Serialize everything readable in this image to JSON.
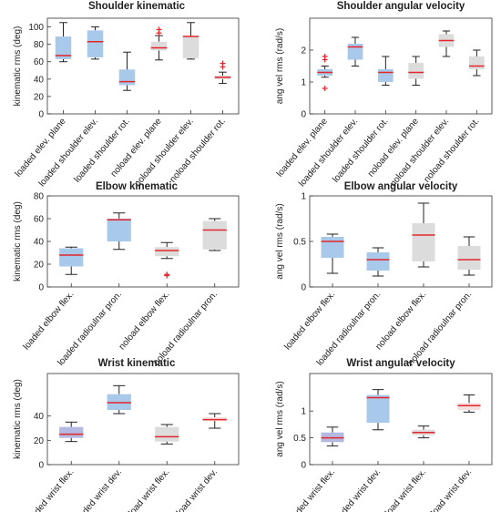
{
  "chart_data": [
    {
      "type": "box",
      "title": "Shoulder kinematic",
      "ylabel": "kinematic rms (deg)",
      "categories": [
        "loaded elev. plane",
        "loaded shoulder elev.",
        "loaded shoulder rot.",
        "noload elev. plane",
        "noload shoulder elev.",
        "noload shoulder rot."
      ],
      "colors": [
        "#a9c9ea",
        "#a9c9ea",
        "#a9c9ea",
        "#dcdcdc",
        "#dcdcdc",
        "#dcdcdc"
      ],
      "boxes": [
        {
          "low": 60,
          "q1": 63,
          "median": 67,
          "q3": 89,
          "high": 105,
          "outliers": []
        },
        {
          "low": 63,
          "q1": 65,
          "median": 83,
          "q3": 96,
          "high": 100,
          "outliers": []
        },
        {
          "low": 27,
          "q1": 33,
          "median": 37,
          "q3": 51,
          "high": 71,
          "outliers": []
        },
        {
          "low": 62,
          "q1": 73,
          "median": 76,
          "q3": 83,
          "high": 90,
          "outliers": [
            93,
            97
          ]
        },
        {
          "low": 63,
          "q1": 64,
          "median": 89,
          "q3": 89,
          "high": 105,
          "outliers": []
        },
        {
          "low": 35,
          "q1": 40,
          "median": 42,
          "q3": 44,
          "high": 48,
          "outliers": [
            54,
            58
          ]
        }
      ],
      "ylim": [
        0,
        110
      ],
      "yticks": [
        0,
        20,
        40,
        60,
        80,
        100
      ],
      "median_color": "#e3262b"
    },
    {
      "type": "box",
      "title": "Shoulder angular velocity",
      "ylabel": "ang vel rms (rad/s)",
      "categories": [
        "loaded elev. plane",
        "loaded shoulder elev.",
        "loaded shoulder rot.",
        "noload elev. plane",
        "noload shoulder elev.",
        "noload shoulder rot."
      ],
      "colors": [
        "#a9c9ea",
        "#a9c9ea",
        "#a9c9ea",
        "#dcdcdc",
        "#dcdcdc",
        "#dcdcdc"
      ],
      "boxes": [
        {
          "low": 1.15,
          "q1": 1.2,
          "median": 1.3,
          "q3": 1.4,
          "high": 1.5,
          "outliers": [
            0.8,
            1.7,
            1.8
          ]
        },
        {
          "low": 1.5,
          "q1": 1.7,
          "median": 2.1,
          "q3": 2.2,
          "high": 2.4,
          "outliers": []
        },
        {
          "low": 0.9,
          "q1": 1.0,
          "median": 1.3,
          "q3": 1.4,
          "high": 1.8,
          "outliers": []
        },
        {
          "low": 0.9,
          "q1": 1.1,
          "median": 1.3,
          "q3": 1.6,
          "high": 1.8,
          "outliers": []
        },
        {
          "low": 1.8,
          "q1": 2.1,
          "median": 2.3,
          "q3": 2.5,
          "high": 2.6,
          "outliers": []
        },
        {
          "low": 1.2,
          "q1": 1.4,
          "median": 1.5,
          "q3": 1.8,
          "high": 2.0,
          "outliers": []
        }
      ],
      "ylim": [
        0,
        3
      ],
      "yticks": [
        0,
        1,
        2
      ],
      "median_color": "#e3262b"
    },
    {
      "type": "box",
      "title": "Elbow kinematic",
      "ylabel": "kinematic rms (deg)",
      "categories": [
        "loaded elbow flex.",
        "loaded radioulnar pron.",
        "noload elbow flex.",
        "noload radioulnar pron."
      ],
      "colors": [
        "#a9c9ea",
        "#a9c9ea",
        "#dcdcdc",
        "#dcdcdc"
      ],
      "boxes": [
        {
          "low": 11,
          "q1": 18,
          "median": 28,
          "q3": 34,
          "high": 35,
          "outliers": []
        },
        {
          "low": 33,
          "q1": 40,
          "median": 59,
          "q3": 60,
          "high": 65,
          "outliers": []
        },
        {
          "low": 25,
          "q1": 27,
          "median": 32,
          "q3": 35,
          "high": 39,
          "outliers": [
            10,
            11
          ]
        },
        {
          "low": 32,
          "q1": 33,
          "median": 50,
          "q3": 58,
          "high": 60,
          "outliers": []
        }
      ],
      "ylim": [
        0,
        80
      ],
      "yticks": [
        0,
        20,
        40,
        60,
        80
      ],
      "median_color": "#e3262b"
    },
    {
      "type": "box",
      "title": "Elbow angular velocity",
      "ylabel": "ang vel rms (rad/s)",
      "categories": [
        "loaded elbow flex.",
        "loaded radioulnar pron.",
        "noload elbow flex.",
        "noload radioulnar pron."
      ],
      "colors": [
        "#a9c9ea",
        "#a9c9ea",
        "#dcdcdc",
        "#dcdcdc"
      ],
      "boxes": [
        {
          "low": 0.15,
          "q1": 0.32,
          "median": 0.5,
          "q3": 0.55,
          "high": 0.58,
          "outliers": []
        },
        {
          "low": 0.12,
          "q1": 0.18,
          "median": 0.3,
          "q3": 0.38,
          "high": 0.43,
          "outliers": []
        },
        {
          "low": 0.22,
          "q1": 0.28,
          "median": 0.57,
          "q3": 0.7,
          "high": 0.92,
          "outliers": []
        },
        {
          "low": 0.13,
          "q1": 0.19,
          "median": 0.3,
          "q3": 0.45,
          "high": 0.55,
          "outliers": []
        }
      ],
      "ylim": [
        0,
        1
      ],
      "yticks": [
        0,
        0.5,
        1
      ],
      "median_color": "#e3262b"
    },
    {
      "type": "box",
      "title": "Wrist kinematic",
      "ylabel": "kinematic rms (deg)",
      "categories": [
        "loaded wrist flex.",
        "loaded wrist dev.",
        "noload wrist flex.",
        "noload wrist dev."
      ],
      "colors": [
        "#b3b9e0",
        "#a9c9ea",
        "#dcdcdc",
        "#f4dede"
      ],
      "boxes": [
        {
          "low": 19,
          "q1": 22,
          "median": 25,
          "q3": 31,
          "high": 35,
          "outliers": []
        },
        {
          "low": 42,
          "q1": 45,
          "median": 51,
          "q3": 58,
          "high": 65,
          "outliers": []
        },
        {
          "low": 17,
          "q1": 19,
          "median": 23,
          "q3": 31,
          "high": 33,
          "outliers": []
        },
        {
          "low": 30,
          "q1": 36,
          "median": 37,
          "q3": 39,
          "high": 42,
          "outliers": []
        }
      ],
      "ylim": [
        0,
        75
      ],
      "yticks": [
        0,
        20,
        40
      ],
      "median_color": "#e3262b"
    },
    {
      "type": "box",
      "title": "Wrist angular velocity",
      "ylabel": "ang vel rms (rad/s)",
      "categories": [
        "loaded wrist flex.",
        "loaded wrist dev.",
        "noload wrist flex.",
        "noload wrist dev."
      ],
      "colors": [
        "#b3b9e0",
        "#a9c9ea",
        "#dcdcdc",
        "#f4dede"
      ],
      "boxes": [
        {
          "low": 0.35,
          "q1": 0.42,
          "median": 0.5,
          "q3": 0.6,
          "high": 0.7,
          "outliers": []
        },
        {
          "low": 0.65,
          "q1": 0.78,
          "median": 1.25,
          "q3": 1.3,
          "high": 1.4,
          "outliers": []
        },
        {
          "low": 0.5,
          "q1": 0.55,
          "median": 0.6,
          "q3": 0.65,
          "high": 0.72,
          "outliers": []
        },
        {
          "low": 0.98,
          "q1": 1.02,
          "median": 1.1,
          "q3": 1.15,
          "high": 1.3,
          "outliers": []
        }
      ],
      "ylim": [
        0,
        1.7
      ],
      "yticks": [
        0,
        0.5,
        1
      ],
      "median_color": "#e3262b"
    }
  ]
}
